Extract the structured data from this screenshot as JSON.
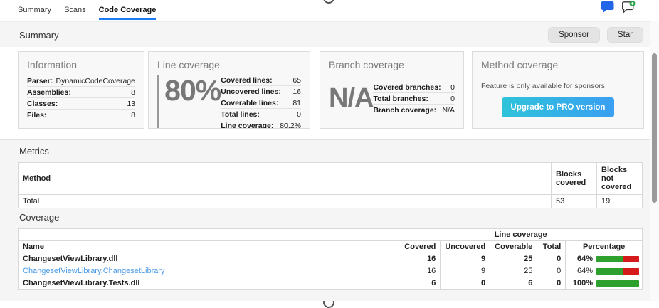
{
  "tabs": {
    "items": [
      {
        "label": "Summary",
        "active": false
      },
      {
        "label": "Scans",
        "active": false
      },
      {
        "label": "Code Coverage",
        "active": true
      }
    ]
  },
  "summary_bar": {
    "title": "Summary",
    "sponsor_label": "Sponsor",
    "star_label": "Star"
  },
  "cards": {
    "information": {
      "title": "Information",
      "rows": [
        {
          "label": "Parser:",
          "value": "DynamicCodeCoverage"
        },
        {
          "label": "Assemblies:",
          "value": "8"
        },
        {
          "label": "Classes:",
          "value": "13"
        },
        {
          "label": "Files:",
          "value": "8"
        }
      ]
    },
    "line_coverage": {
      "title": "Line coverage",
      "big_value": "80%",
      "rows": [
        {
          "label": "Covered lines:",
          "value": "65"
        },
        {
          "label": "Uncovered lines:",
          "value": "16"
        },
        {
          "label": "Coverable lines:",
          "value": "81"
        },
        {
          "label": "Total lines:",
          "value": "0"
        },
        {
          "label": "Line coverage:",
          "value": "80.2%"
        }
      ]
    },
    "branch_coverage": {
      "title": "Branch coverage",
      "big_value": "N/A",
      "rows": [
        {
          "label": "Covered branches:",
          "value": "0"
        },
        {
          "label": "Total branches:",
          "value": "0"
        },
        {
          "label": "Branch coverage:",
          "value": "N/A"
        }
      ]
    },
    "method_coverage": {
      "title": "Method coverage",
      "note": "Feature is only available for sponsors",
      "button_label": "Upgrade to PRO version"
    }
  },
  "metrics": {
    "heading": "Metrics",
    "columns": [
      "Method",
      "Blocks covered",
      "Blocks not covered"
    ],
    "total_row": {
      "name": "Total",
      "blocks_covered": "53",
      "blocks_not_covered": "19"
    }
  },
  "coverage": {
    "heading": "Coverage",
    "group_label": "Line coverage",
    "columns": [
      "Name",
      "Covered",
      "Uncovered",
      "Coverable",
      "Total",
      "Percentage"
    ],
    "rows": [
      {
        "name": "ChangesetViewLibrary.dll",
        "covered": "16",
        "uncovered": "9",
        "coverable": "25",
        "total": "0",
        "percentage": "64%",
        "green_pct": 64
      },
      {
        "name": "ChangesetViewLibrary.ChangesetLibrary",
        "covered": "16",
        "uncovered": "9",
        "coverable": "25",
        "total": "0",
        "percentage": "64%",
        "green_pct": 64
      },
      {
        "name": "ChangesetViewLibrary.Tests.dll",
        "covered": "6",
        "uncovered": "0",
        "coverable": "6",
        "total": "0",
        "percentage": "100%",
        "green_pct": 100
      }
    ]
  },
  "colors": {
    "active_tab_underline": "#1a7af8",
    "link_blue": "#4a9be8",
    "bar_green": "#2da02d",
    "bar_red": "#d41a1a",
    "pro_button_gradient_start": "#2fc3da",
    "pro_button_gradient_end": "#3a9ff2",
    "comment_icon_blue": "#2166e8",
    "plus_badge_green": "#2da44e"
  }
}
